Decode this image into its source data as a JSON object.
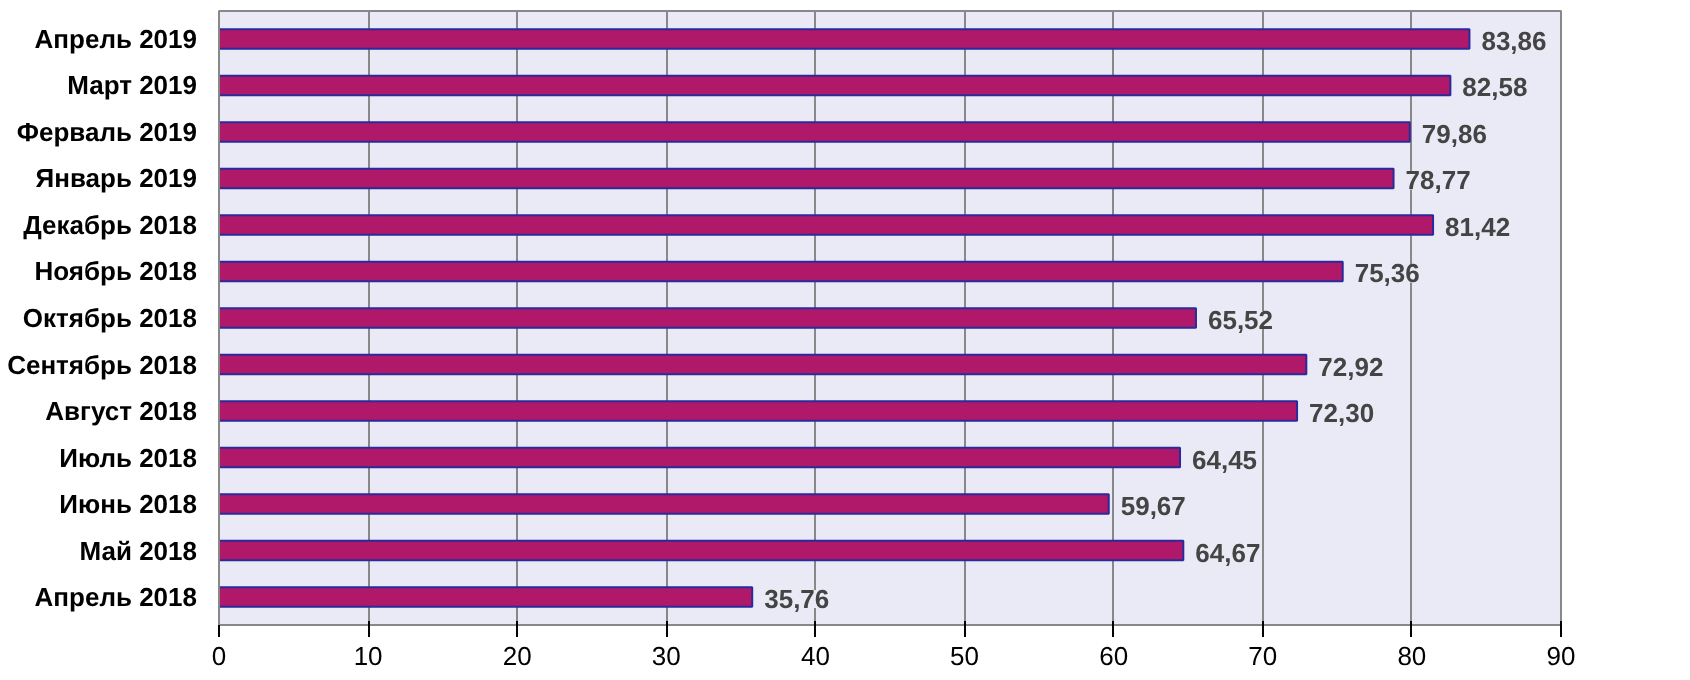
{
  "chart_data": {
    "type": "bar",
    "orientation": "horizontal",
    "categories": [
      "Апрель 2019",
      "Март 2019",
      "Ферваль 2019",
      "Январь 2019",
      "Декабрь 2018",
      "Ноябрь 2018",
      "Октябрь 2018",
      "Сентябрь 2018",
      "Август 2018",
      "Июль 2018",
      "Июнь 2018",
      "Май 2018",
      "Апрель 2018"
    ],
    "values": [
      83.86,
      82.58,
      79.86,
      78.77,
      81.42,
      75.36,
      65.52,
      72.92,
      72.3,
      64.45,
      59.67,
      64.67,
      35.76
    ],
    "value_labels": [
      "83,86",
      "82,58",
      "79,86",
      "78,77",
      "81,42",
      "75,36",
      "65,52",
      "72,92",
      "72,30",
      "64,45",
      "59,67",
      "64,67",
      "35,76"
    ],
    "color": "#b0186a",
    "xlim": [
      0,
      90
    ],
    "xticks": [
      0,
      10,
      20,
      30,
      40,
      50,
      60,
      70,
      80,
      90
    ],
    "grid": "x"
  }
}
